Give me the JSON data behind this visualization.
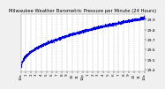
{
  "title": "Milwaukee Weather Barometric Pressure per Minute (24 Hours)",
  "title_fontsize": 3.8,
  "bg_color": "#f0f0f0",
  "plot_bg_color": "#ffffff",
  "grid_color": "#aaaaaa",
  "dot_color": "#0000dd",
  "dot_size": 0.8,
  "x_count": 1440,
  "y_start": 29.42,
  "y_plateau": 29.92,
  "ylim": [
    29.38,
    29.96
  ],
  "ylabel_fontsize": 3.2,
  "xlabel_fontsize": 3.0,
  "x_tick_labels": [
    "12a",
    "1",
    "2",
    "3",
    "4",
    "5",
    "6",
    "7",
    "8",
    "9",
    "10",
    "11",
    "12p",
    "1",
    "2",
    "3",
    "4",
    "5",
    "6",
    "7",
    "8",
    "9",
    "10",
    "11",
    "12a"
  ],
  "x_tick_positions": [
    0,
    60,
    120,
    180,
    240,
    300,
    360,
    420,
    480,
    540,
    600,
    660,
    720,
    780,
    840,
    900,
    960,
    1020,
    1080,
    1140,
    1200,
    1260,
    1320,
    1380,
    1439
  ],
  "y_ticks": [
    29.4,
    29.5,
    29.6,
    29.7,
    29.8,
    29.9
  ],
  "noise_scale": 0.006
}
